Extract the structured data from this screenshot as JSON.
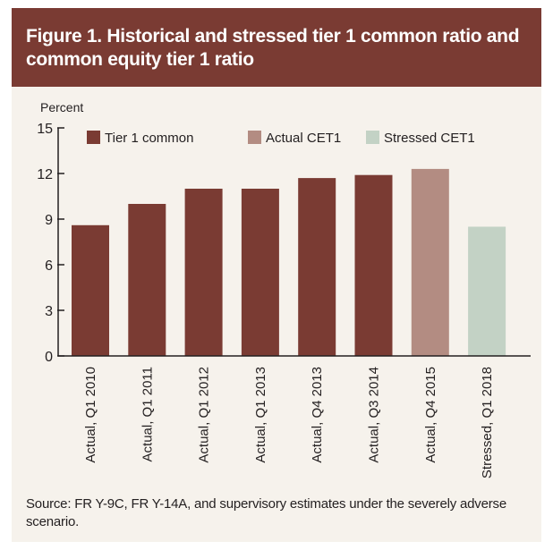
{
  "figure": {
    "title": "Figure 1. Historical and stressed tier 1 common ratio and common equity tier 1 ratio",
    "source": "Source: FR Y-9C, FR Y-14A, and supervisory estimates under the severely adverse scenario."
  },
  "colors": {
    "header_bg": "#7a3b33",
    "panel_bg": "#f6f2ec",
    "tier1_common": "#7a3b33",
    "actual_cet1": "#b38c82",
    "stressed_cet1": "#c3d2c5"
  },
  "chart_data": {
    "type": "bar",
    "ylabel": "Percent",
    "xlabel": "",
    "ylim": [
      0,
      15
    ],
    "yticks": [
      0,
      3,
      6,
      9,
      12,
      15
    ],
    "grid": false,
    "legend_position": "top",
    "categories": [
      "Actual, Q1 2010",
      "Actual, Q1 2011",
      "Actual, Q1 2012",
      "Actual, Q1 2013",
      "Actual, Q4 2013",
      "Actual, Q3 2014",
      "Actual, Q4 2015",
      "Stressed, Q1 2018"
    ],
    "values": [
      8.6,
      10.0,
      11.0,
      11.0,
      11.7,
      11.9,
      12.3,
      8.5
    ],
    "bar_series": [
      "Tier 1 common",
      "Tier 1 common",
      "Tier 1 common",
      "Tier 1 common",
      "Tier 1 common",
      "Tier 1 common",
      "Actual CET1",
      "Stressed CET1"
    ],
    "series": [
      {
        "name": "Tier 1 common",
        "color": "#7a3b33"
      },
      {
        "name": "Actual CET1",
        "color": "#b38c82"
      },
      {
        "name": "Stressed CET1",
        "color": "#c3d2c5"
      }
    ]
  }
}
